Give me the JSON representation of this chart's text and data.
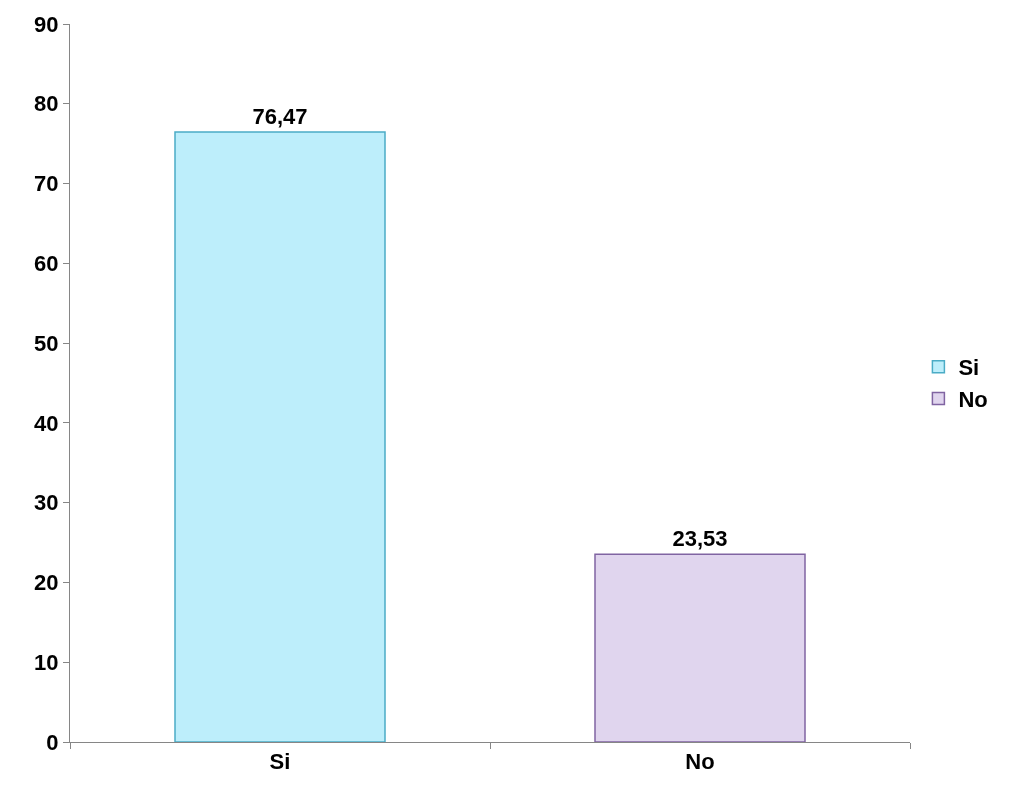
{
  "chart_data": {
    "type": "bar",
    "categories": [
      "Si",
      "No"
    ],
    "series": [
      {
        "name": "Si",
        "color": "#bdeefb",
        "values": [
          76.47,
          null
        ],
        "value_labels": [
          "76,47",
          null
        ]
      },
      {
        "name": "No",
        "color": "#e0d5ee",
        "values": [
          null,
          23.53
        ],
        "value_labels": [
          null,
          "23,53"
        ]
      }
    ],
    "ylim": [
      0,
      90
    ],
    "yticks": [
      0,
      10,
      20,
      30,
      40,
      50,
      60,
      70,
      80,
      90
    ],
    "grid": false,
    "legend": "right"
  }
}
